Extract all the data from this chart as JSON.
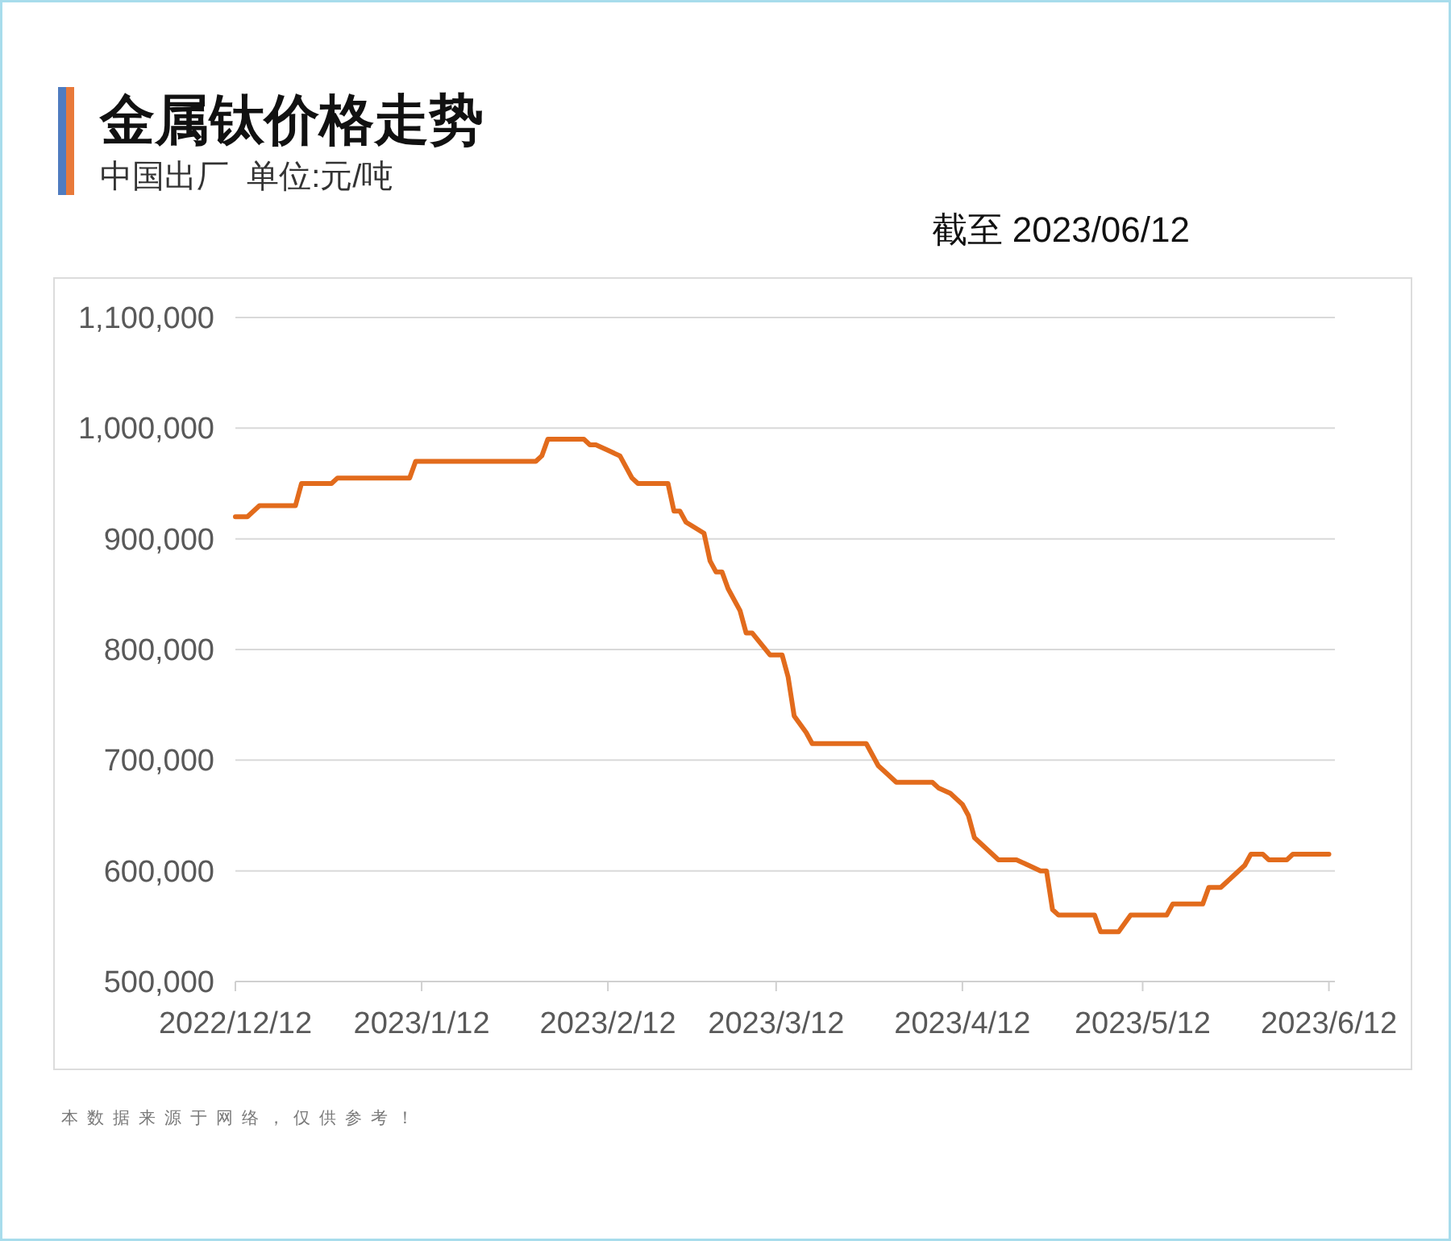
{
  "chart_data": {
    "type": "line",
    "title": "金属钛价格走势",
    "subtitle": "中国出厂  单位:元/吨",
    "annotations": [
      "截至 2023/06/12",
      "本数据来源于网络，仅供参考！"
    ],
    "x": [
      "2022-12-12",
      "2022-12-14",
      "2022-12-16",
      "2022-12-22",
      "2022-12-23",
      "2022-12-28",
      "2022-12-29",
      "2023-01-10",
      "2023-01-11",
      "2023-01-31",
      "2023-02-01",
      "2023-02-02",
      "2023-02-08",
      "2023-02-09",
      "2023-02-10",
      "2023-02-12",
      "2023-02-14",
      "2023-02-16",
      "2023-02-17",
      "2023-02-22",
      "2023-02-23",
      "2023-02-24",
      "2023-02-25",
      "2023-02-28",
      "2023-03-01",
      "2023-03-02",
      "2023-03-03",
      "2023-03-04",
      "2023-03-06",
      "2023-03-07",
      "2023-03-08",
      "2023-03-11",
      "2023-03-13",
      "2023-03-14",
      "2023-03-15",
      "2023-03-17",
      "2023-03-18",
      "2023-03-27",
      "2023-03-29",
      "2023-03-30",
      "2023-04-01",
      "2023-04-07",
      "2023-04-08",
      "2023-04-10",
      "2023-04-11",
      "2023-04-12",
      "2023-04-13",
      "2023-04-14",
      "2023-04-18",
      "2023-04-21",
      "2023-04-23",
      "2023-04-25",
      "2023-04-26",
      "2023-04-27",
      "2023-04-28",
      "2023-05-04",
      "2023-05-05",
      "2023-05-08",
      "2023-05-10",
      "2023-05-16",
      "2023-05-17",
      "2023-05-22",
      "2023-05-23",
      "2023-05-25",
      "2023-05-29",
      "2023-05-30",
      "2023-06-01",
      "2023-06-02",
      "2023-06-05",
      "2023-06-06",
      "2023-06-12"
    ],
    "values": [
      920000,
      920000,
      930000,
      930000,
      950000,
      950000,
      955000,
      955000,
      970000,
      970000,
      975000,
      990000,
      990000,
      985000,
      985000,
      980000,
      975000,
      955000,
      950000,
      950000,
      925000,
      925000,
      915000,
      905000,
      880000,
      870000,
      870000,
      855000,
      835000,
      815000,
      815000,
      795000,
      795000,
      775000,
      740000,
      725000,
      715000,
      715000,
      695000,
      690000,
      680000,
      680000,
      675000,
      670000,
      665000,
      660000,
      650000,
      630000,
      610000,
      610000,
      605000,
      600000,
      600000,
      565000,
      560000,
      560000,
      545000,
      545000,
      560000,
      560000,
      570000,
      570000,
      585000,
      585000,
      605000,
      615000,
      615000,
      610000,
      610000,
      615000,
      615000
    ],
    "color": "#e26b1c",
    "line_style": "solid",
    "xlim": [
      "2022-12-12",
      "2023-06-13"
    ],
    "ylim": [
      500000,
      1100000
    ],
    "xticks": [
      {
        "value": "2022-12-12",
        "label": "2022/12/12"
      },
      {
        "value": "2023-01-12",
        "label": "2023/1/12"
      },
      {
        "value": "2023-02-12",
        "label": "2023/2/12"
      },
      {
        "value": "2023-03-12",
        "label": "2023/3/12"
      },
      {
        "value": "2023-04-12",
        "label": "2023/4/12"
      },
      {
        "value": "2023-05-12",
        "label": "2023/5/12"
      },
      {
        "value": "2023-06-12",
        "label": "2023/6/12"
      }
    ],
    "yticks": [
      {
        "value": 500000,
        "label": "500,000"
      },
      {
        "value": 600000,
        "label": "600,000"
      },
      {
        "value": 700000,
        "label": "700,000"
      },
      {
        "value": 800000,
        "label": "800,000"
      },
      {
        "value": 900000,
        "label": "900,000"
      },
      {
        "value": 1000000,
        "label": "1,000,000"
      },
      {
        "value": 1100000,
        "label": "1,100,000"
      }
    ],
    "grid": "y"
  }
}
